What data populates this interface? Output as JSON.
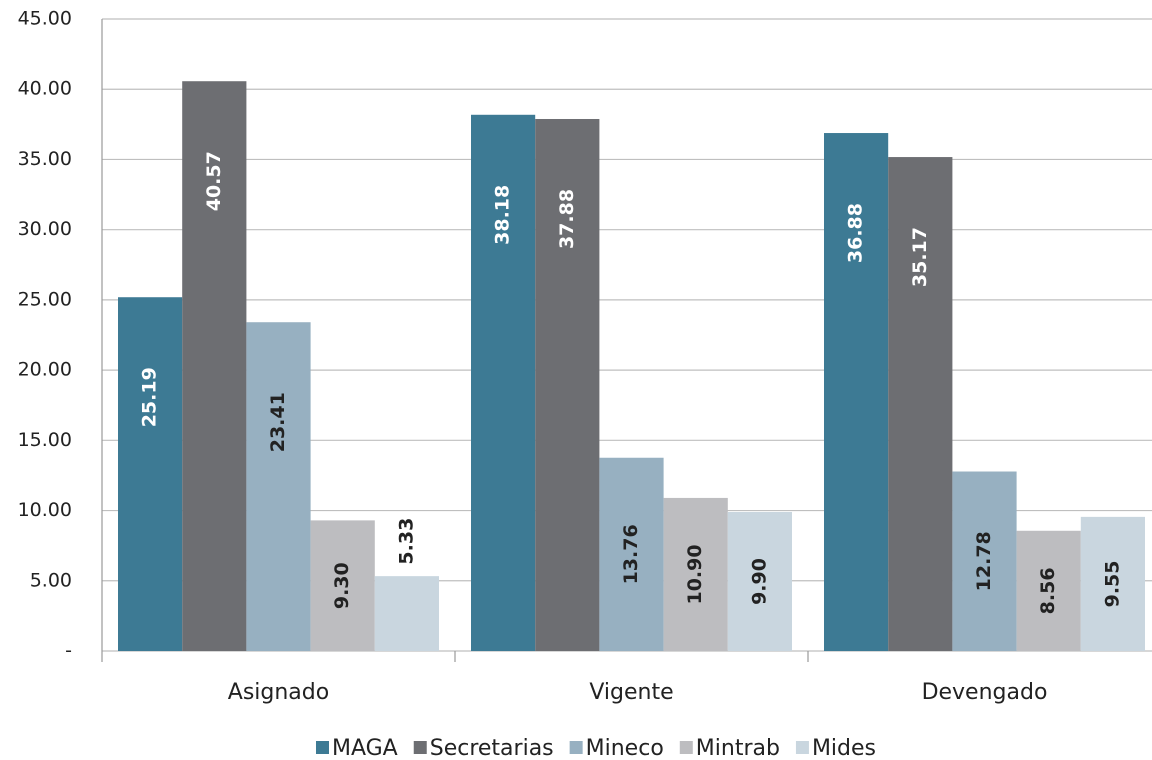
{
  "chart_data": {
    "type": "bar",
    "categories": [
      "Asignado",
      "Vigente",
      "Devengado"
    ],
    "series": [
      {
        "name": "MAGA",
        "color": "#3d7a94",
        "values": [
          25.19,
          38.18,
          36.88
        ],
        "value_labels": [
          "25.19",
          "38.18",
          "36.88"
        ]
      },
      {
        "name": "Secretarias",
        "color": "#6d6e72",
        "values": [
          40.57,
          37.88,
          35.17
        ],
        "value_labels": [
          "40.57",
          "37.88",
          "35.17"
        ]
      },
      {
        "name": "Mineco",
        "color": "#97b0c1",
        "values": [
          23.41,
          13.76,
          12.78
        ],
        "value_labels": [
          "23.41",
          "13.76",
          "12.78"
        ]
      },
      {
        "name": "Mintrab",
        "color": "#bdbdc0",
        "values": [
          9.3,
          10.9,
          8.56
        ],
        "value_labels": [
          "9.30",
          "10.90",
          "8.56"
        ]
      },
      {
        "name": "Mides",
        "color": "#c9d6df",
        "values": [
          5.33,
          9.9,
          9.55
        ],
        "value_labels": [
          "5.33",
          "9.90",
          "9.55"
        ]
      }
    ],
    "ylim": [
      0,
      45
    ],
    "yticks": [
      {
        "value": 0,
        "label": "-"
      },
      {
        "value": 5,
        "label": "5.00"
      },
      {
        "value": 10,
        "label": "10.00"
      },
      {
        "value": 15,
        "label": "15.00"
      },
      {
        "value": 20,
        "label": "20.00"
      },
      {
        "value": 25,
        "label": "25.00"
      },
      {
        "value": 30,
        "label": "30.00"
      },
      {
        "value": 35,
        "label": "35.00"
      },
      {
        "value": 40,
        "label": "40.00"
      },
      {
        "value": 45,
        "label": "45.00"
      }
    ],
    "grid": true,
    "legend": "bottom"
  }
}
